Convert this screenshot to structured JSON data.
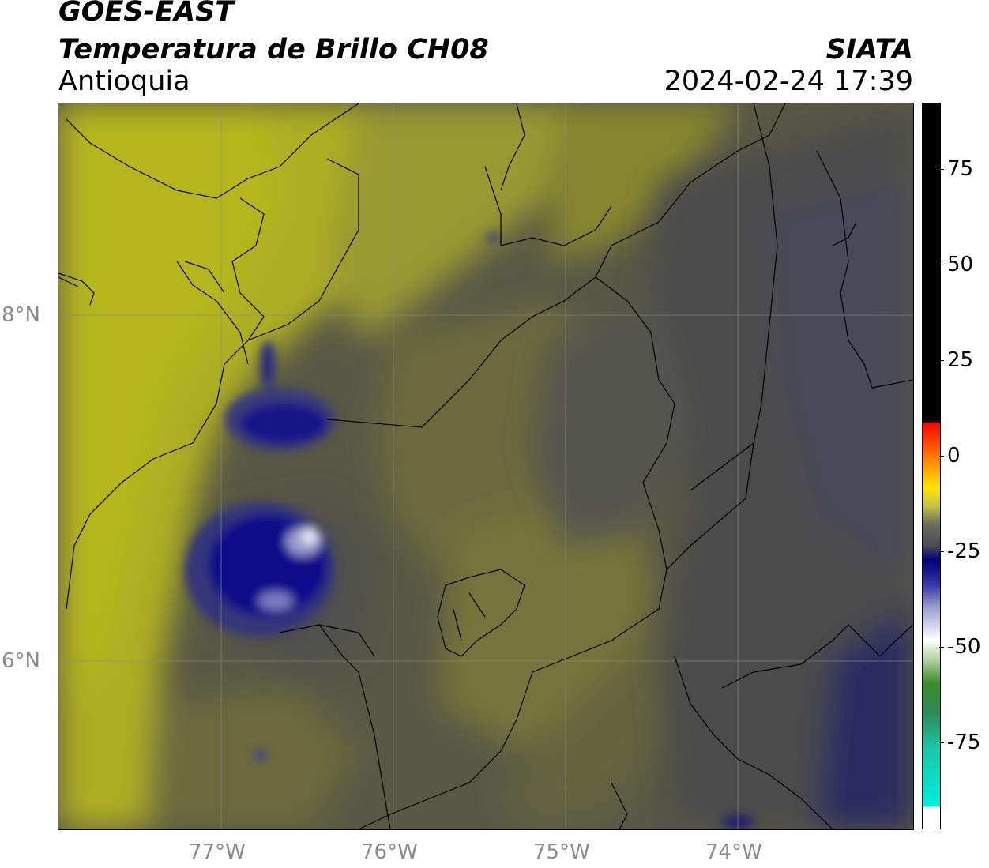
{
  "header": {
    "title_line1": "GOES-EAST",
    "title_line2": "Temperatura de Brillo CH08",
    "region": "Antioquia",
    "organization": "SIATA",
    "timestamp": "2024-02-24 17:39"
  },
  "map": {
    "latitude_labels": [
      "8°N",
      "6°N"
    ],
    "longitude_labels": [
      "77°W",
      "76°W",
      "75°W",
      "74°W"
    ],
    "field_colors": {
      "warm_olive": "#b3b320",
      "mid_olive": "#8c8c36",
      "dark_gray": "#505050",
      "cold_navy": "#0a0a80",
      "coldest_white": "#dcdcf0"
    }
  },
  "colorbar": {
    "tick_labels": [
      "75",
      "50",
      "25",
      "0",
      "-25",
      "-50",
      "-75"
    ],
    "colors": [
      "#000000",
      "#ff0000",
      "#ff9a00",
      "#ffe600",
      "#6e6e5a",
      "#00007a",
      "#ffffff",
      "#3c8c2a",
      "#00eee0"
    ]
  }
}
